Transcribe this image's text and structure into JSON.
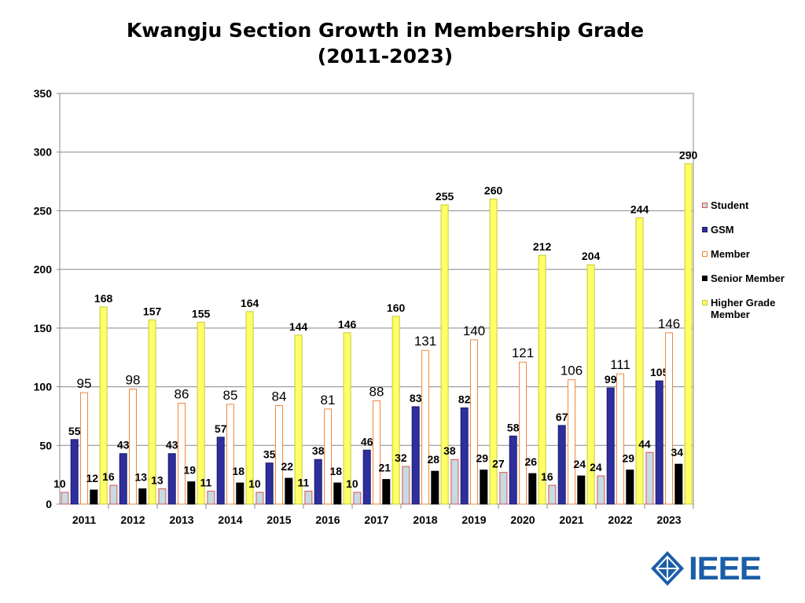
{
  "chart_data": {
    "type": "bar",
    "title": "Kwangju Section Growth in Membership Grade",
    "subtitle": "(2011-2023)",
    "xlabel": "",
    "ylabel": "",
    "ylim": [
      0,
      350
    ],
    "yticks": [
      0,
      50,
      100,
      150,
      200,
      250,
      300,
      350
    ],
    "grid": true,
    "legend_position": "right",
    "categories": [
      "2011",
      "2012",
      "2013",
      "2014",
      "2015",
      "2016",
      "2017",
      "2018",
      "2019",
      "2020",
      "2021",
      "2022",
      "2023"
    ],
    "series": [
      {
        "name": "Student",
        "fill": "#c6dbe3",
        "stroke": "#d9534f",
        "label_style": "bold",
        "values": [
          10,
          16,
          13,
          11,
          10,
          11,
          10,
          32,
          38,
          27,
          16,
          24,
          44
        ]
      },
      {
        "name": "GSM",
        "fill": "#2e2e9c",
        "stroke": "#1a1a6e",
        "label_style": "bold",
        "values": [
          55,
          43,
          43,
          57,
          35,
          38,
          46,
          83,
          82,
          58,
          67,
          99,
          105
        ]
      },
      {
        "name": "Member",
        "fill": "#ffffff",
        "stroke": "#f0883a",
        "label_style": "large",
        "values": [
          95,
          98,
          86,
          85,
          84,
          81,
          88,
          131,
          140,
          121,
          106,
          111,
          146
        ]
      },
      {
        "name": "Senior Member",
        "fill": "#000000",
        "stroke": "#000000",
        "label_style": "bold",
        "values": [
          12,
          13,
          19,
          18,
          22,
          18,
          21,
          28,
          29,
          26,
          24,
          29,
          34
        ]
      },
      {
        "name": "Higher Grade Member",
        "fill": "#ffff66",
        "stroke": "#c8c83c",
        "label_style": "bold",
        "values": [
          168,
          157,
          155,
          164,
          144,
          146,
          160,
          255,
          260,
          212,
          204,
          244,
          290
        ]
      }
    ]
  },
  "legend": {
    "items": [
      {
        "label": "Student",
        "fill": "#c6dbe3",
        "stroke": "#d9534f"
      },
      {
        "label": "GSM",
        "fill": "#2e2e9c",
        "stroke": "#1a1a6e"
      },
      {
        "label": "Member",
        "fill": "#ffffff",
        "stroke": "#f0883a"
      },
      {
        "label": "Senior Member",
        "fill": "#000000",
        "stroke": "#000000"
      },
      {
        "label": "Higher Grade Member",
        "fill": "#ffff66",
        "stroke": "#c8c83c"
      }
    ]
  },
  "logo": {
    "text": "IEEE",
    "color": "#1b5ea8",
    "icon": "ieee-kite-icon"
  }
}
